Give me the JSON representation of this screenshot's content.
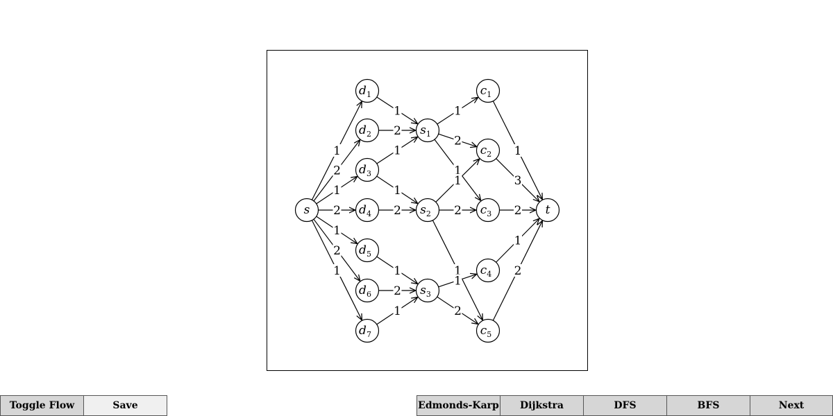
{
  "toolbar_left": [
    {
      "id": "toggle-flow",
      "label": "Toggle Flow"
    },
    {
      "id": "save",
      "label": "Save"
    }
  ],
  "toolbar_right": [
    {
      "id": "edmonds-karp",
      "label": "Edmonds-Karp"
    },
    {
      "id": "dijkstra",
      "label": "Dijkstra"
    },
    {
      "id": "dfs",
      "label": "DFS"
    },
    {
      "id": "bfs",
      "label": "BFS"
    },
    {
      "id": "next",
      "label": "Next"
    }
  ],
  "graph": {
    "nodes": [
      {
        "id": "s",
        "base": "s",
        "sub": ""
      },
      {
        "id": "d1",
        "base": "d",
        "sub": "1"
      },
      {
        "id": "d2",
        "base": "d",
        "sub": "2"
      },
      {
        "id": "d3",
        "base": "d",
        "sub": "3"
      },
      {
        "id": "d4",
        "base": "d",
        "sub": "4"
      },
      {
        "id": "d5",
        "base": "d",
        "sub": "5"
      },
      {
        "id": "d6",
        "base": "d",
        "sub": "6"
      },
      {
        "id": "d7",
        "base": "d",
        "sub": "7"
      },
      {
        "id": "s1",
        "base": "s",
        "sub": "1"
      },
      {
        "id": "s2",
        "base": "s",
        "sub": "2"
      },
      {
        "id": "s3",
        "base": "s",
        "sub": "3"
      },
      {
        "id": "c1",
        "base": "c",
        "sub": "1"
      },
      {
        "id": "c2",
        "base": "c",
        "sub": "2"
      },
      {
        "id": "c3",
        "base": "c",
        "sub": "3"
      },
      {
        "id": "c4",
        "base": "c",
        "sub": "4"
      },
      {
        "id": "c5",
        "base": "c",
        "sub": "5"
      },
      {
        "id": "t",
        "base": "t",
        "sub": ""
      }
    ],
    "edges": [
      {
        "from": "s",
        "to": "d1",
        "cap": "1"
      },
      {
        "from": "s",
        "to": "d2",
        "cap": "2"
      },
      {
        "from": "s",
        "to": "d3",
        "cap": "1"
      },
      {
        "from": "s",
        "to": "d4",
        "cap": "2"
      },
      {
        "from": "s",
        "to": "d5",
        "cap": "1"
      },
      {
        "from": "s",
        "to": "d6",
        "cap": "2"
      },
      {
        "from": "s",
        "to": "d7",
        "cap": "1"
      },
      {
        "from": "d1",
        "to": "s1",
        "cap": "1"
      },
      {
        "from": "d2",
        "to": "s1",
        "cap": "2"
      },
      {
        "from": "d3",
        "to": "s1",
        "cap": "1"
      },
      {
        "from": "d3",
        "to": "s2",
        "cap": "1"
      },
      {
        "from": "d4",
        "to": "s2",
        "cap": "2"
      },
      {
        "from": "d5",
        "to": "s3",
        "cap": "1"
      },
      {
        "from": "d6",
        "to": "s3",
        "cap": "2"
      },
      {
        "from": "d7",
        "to": "s3",
        "cap": "1"
      },
      {
        "from": "s1",
        "to": "c1",
        "cap": "1"
      },
      {
        "from": "s1",
        "to": "c2",
        "cap": "2"
      },
      {
        "from": "s1",
        "to": "c3",
        "cap": "1"
      },
      {
        "from": "s2",
        "to": "c2",
        "cap": "1"
      },
      {
        "from": "s2",
        "to": "c3",
        "cap": "2"
      },
      {
        "from": "s2",
        "to": "c5",
        "cap": "1"
      },
      {
        "from": "s3",
        "to": "c4",
        "cap": "1"
      },
      {
        "from": "s3",
        "to": "c5",
        "cap": "2"
      },
      {
        "from": "c1",
        "to": "t",
        "cap": "1"
      },
      {
        "from": "c2",
        "to": "t",
        "cap": "3"
      },
      {
        "from": "c3",
        "to": "t",
        "cap": "2"
      },
      {
        "from": "c4",
        "to": "t",
        "cap": "1"
      },
      {
        "from": "c5",
        "to": "t",
        "cap": "2"
      }
    ]
  }
}
